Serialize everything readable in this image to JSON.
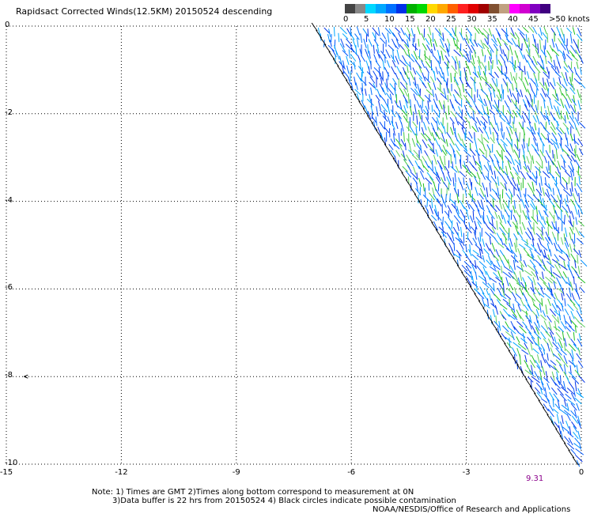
{
  "title": "Rapidsact Corrected Winds(12.5KM) 20150524 descending",
  "legend": {
    "colors": [
      "#444444",
      "#888888",
      "#00d8ff",
      "#00a8ff",
      "#0070ff",
      "#0030e8",
      "#00b000",
      "#00d800",
      "#ffd800",
      "#ffa800",
      "#ff6000",
      "#ff2020",
      "#e00000",
      "#a00000",
      "#805030",
      "#c0a080",
      "#ff00ff",
      "#d000d0",
      "#8000c0",
      "#400080"
    ],
    "labels": [
      "0",
      "5",
      "10",
      "15",
      "20",
      "25",
      "30",
      "35",
      "40",
      "45",
      ">50 knots"
    ]
  },
  "axes": {
    "x_ticks": [
      "-15",
      "-12",
      "-9",
      "-6",
      "-3",
      "0"
    ],
    "y_ticks": [
      "0",
      "-2",
      "-4",
      "-6",
      "-8",
      "-10"
    ],
    "xlim": [
      -15,
      0
    ],
    "ylim": [
      -10,
      0
    ],
    "grid": "dotted"
  },
  "time_label": "9.31",
  "notes": {
    "line1": "Note: 1) Times are GMT 2)Times along bottom correspond to measurement at 0N",
    "line2": "3)Data buffer is 22 hrs from 20150524 4) Black circles indicate possible contamination",
    "line3": "NOAA/NESDIS/Office of Research and Applications"
  }
}
